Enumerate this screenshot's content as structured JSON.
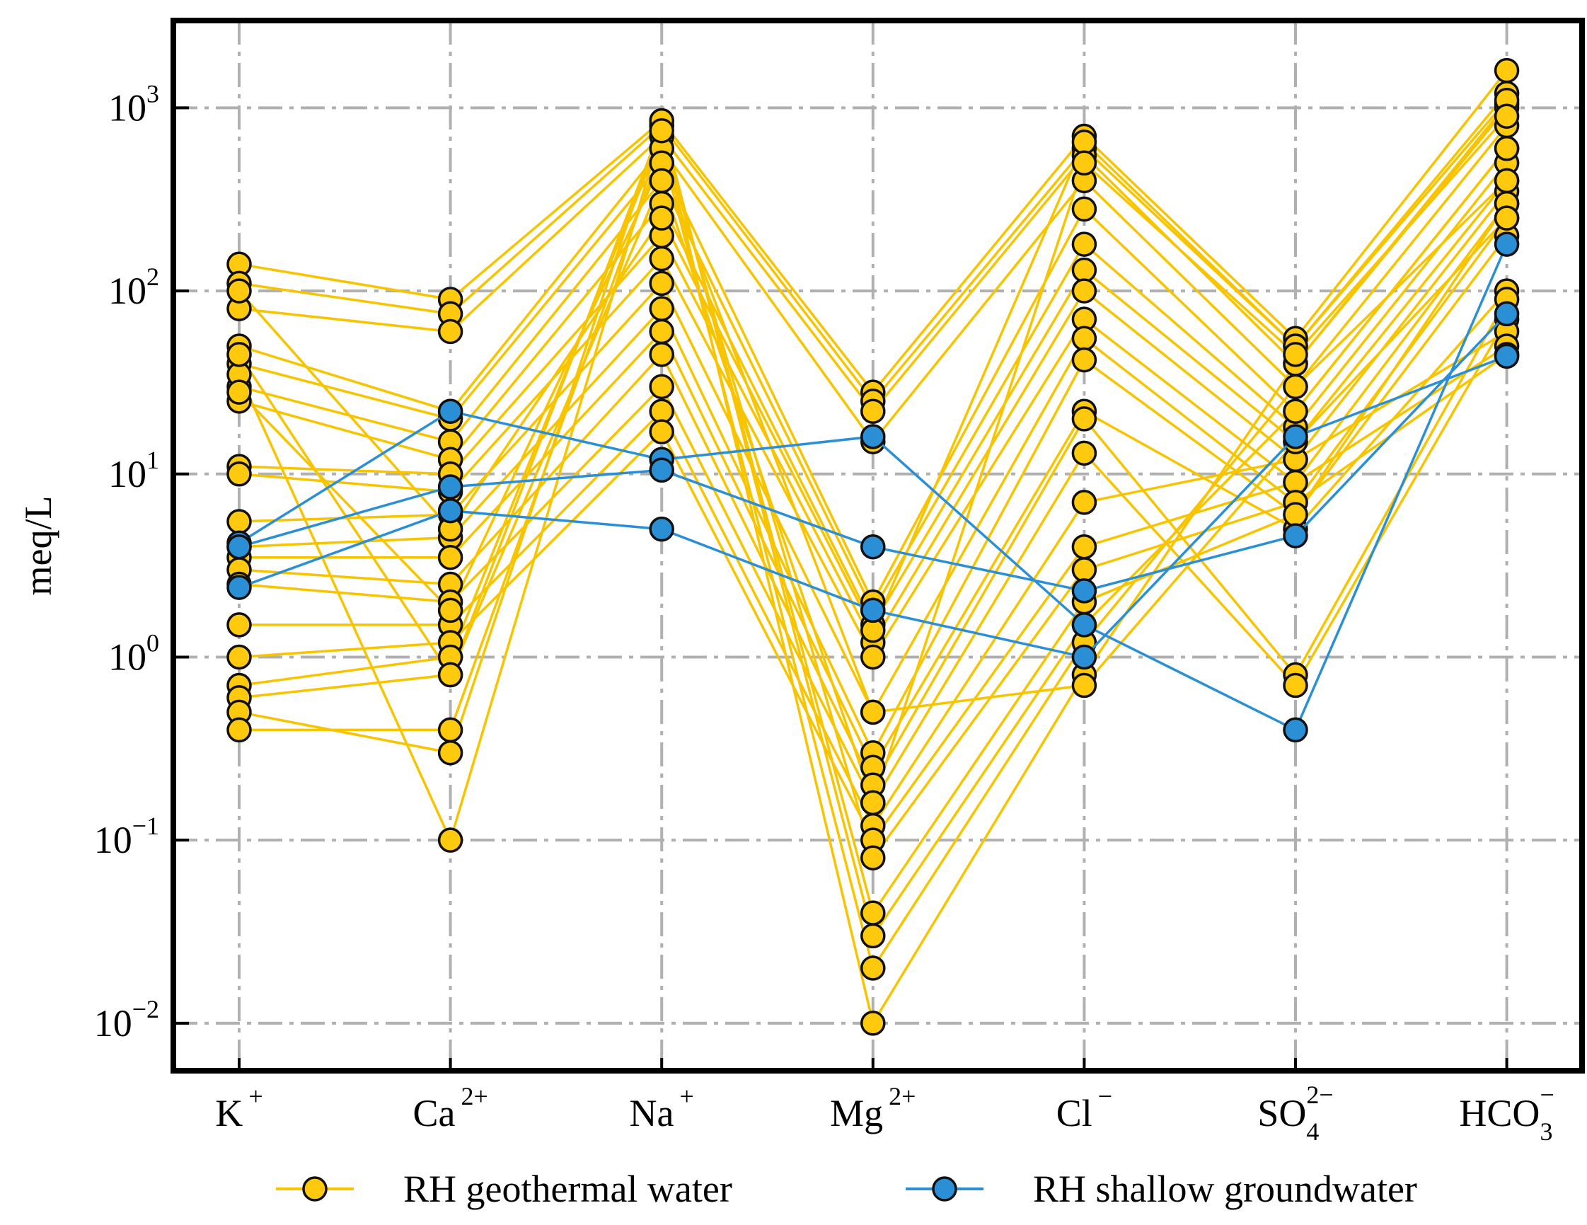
{
  "chart_data": {
    "type": "schoeller",
    "ylabel": "meq/L",
    "log_y": true,
    "grid": true,
    "legend": "bottom",
    "categories": [
      {
        "base": "K",
        "sup": "+"
      },
      {
        "base": "Ca",
        "sup": "2+"
      },
      {
        "base": "Na",
        "sup": "+"
      },
      {
        "base": "Mg",
        "sup": "2+"
      },
      {
        "base": "Cl",
        "sup": "−"
      },
      {
        "base": "SO",
        "sub": "4",
        "sup": "2−"
      },
      {
        "base": "HCO",
        "sub": "3",
        "sup": "−"
      }
    ],
    "ylim": [
      0.0055,
      3000
    ],
    "yticks": [
      {
        "value": 0.01,
        "label": {
          "base": "10",
          "sup": "−2"
        }
      },
      {
        "value": 0.1,
        "label": {
          "base": "10",
          "sup": "−1"
        }
      },
      {
        "value": 1,
        "label": {
          "base": "10",
          "sup": "0"
        }
      },
      {
        "value": 10,
        "label": {
          "base": "10",
          "sup": "1"
        }
      },
      {
        "value": 100,
        "label": {
          "base": "10",
          "sup": "2"
        }
      },
      {
        "value": 1000,
        "label": {
          "base": "10",
          "sup": "3"
        }
      }
    ],
    "groups": [
      {
        "name": "RH geothermal water",
        "color": "#FFC90E",
        "line_color": "#F8C400",
        "samples": [
          [
            140,
            90,
            850,
            28,
            700,
            55,
            1600
          ],
          [
            110,
            75,
            800,
            25,
            600,
            50,
            1200
          ],
          [
            80,
            60,
            700,
            22,
            550,
            40,
            1050
          ],
          [
            50,
            22,
            600,
            15,
            400,
            30,
            800
          ],
          [
            40,
            20,
            500,
            2,
            280,
            22,
            600
          ],
          [
            30,
            15,
            400,
            1.8,
            180,
            18,
            500
          ],
          [
            25,
            12,
            300,
            1.5,
            130,
            15,
            400
          ],
          [
            11,
            10,
            200,
            1.2,
            100,
            12,
            350
          ],
          [
            10,
            8,
            150,
            1,
            70,
            9,
            300
          ],
          [
            5.5,
            6,
            110,
            0.5,
            55,
            7,
            250
          ],
          [
            4,
            4.5,
            80,
            0.3,
            42,
            6,
            200
          ],
          [
            3.5,
            3.5,
            60,
            0.25,
            22,
            5,
            100
          ],
          [
            3,
            2.5,
            45,
            0.2,
            20,
            0.8,
            90
          ],
          [
            2.5,
            2,
            30,
            0.16,
            13,
            0.7,
            70
          ],
          [
            1.5,
            1.5,
            22,
            0.12,
            7,
            12,
            60
          ],
          [
            1,
            1.2,
            17,
            0.1,
            4,
            9,
            50
          ],
          [
            0.7,
            1,
            700,
            0.08,
            3,
            7,
            45
          ],
          [
            0.6,
            0.8,
            800,
            0.04,
            2,
            6,
            300
          ],
          [
            0.5,
            0.3,
            850,
            0.03,
            1.5,
            22,
            600
          ],
          [
            0.4,
            0.4,
            600,
            0.02,
            1.2,
            30,
            400
          ],
          [
            35,
            0.1,
            750,
            0.01,
            0.8,
            40,
            1000
          ],
          [
            28,
            1.8,
            500,
            0.5,
            0.7,
            15,
            250
          ],
          [
            100,
            5,
            250,
            1.4,
            650,
            50,
            1100
          ],
          [
            45,
            0.8,
            400,
            0.16,
            500,
            45,
            900
          ]
        ]
      },
      {
        "name": "RH shallow groundwater",
        "color": "#2B8FD6",
        "line_color": "#2B8FD6",
        "samples": [
          [
            4.2,
            22,
            12,
            16,
            1.5,
            0.4,
            180
          ],
          [
            4,
            8.5,
            10.5,
            4,
            2.3,
            4.6,
            75
          ],
          [
            2.4,
            6.3,
            5,
            1.8,
            1,
            16,
            44
          ]
        ]
      }
    ]
  }
}
